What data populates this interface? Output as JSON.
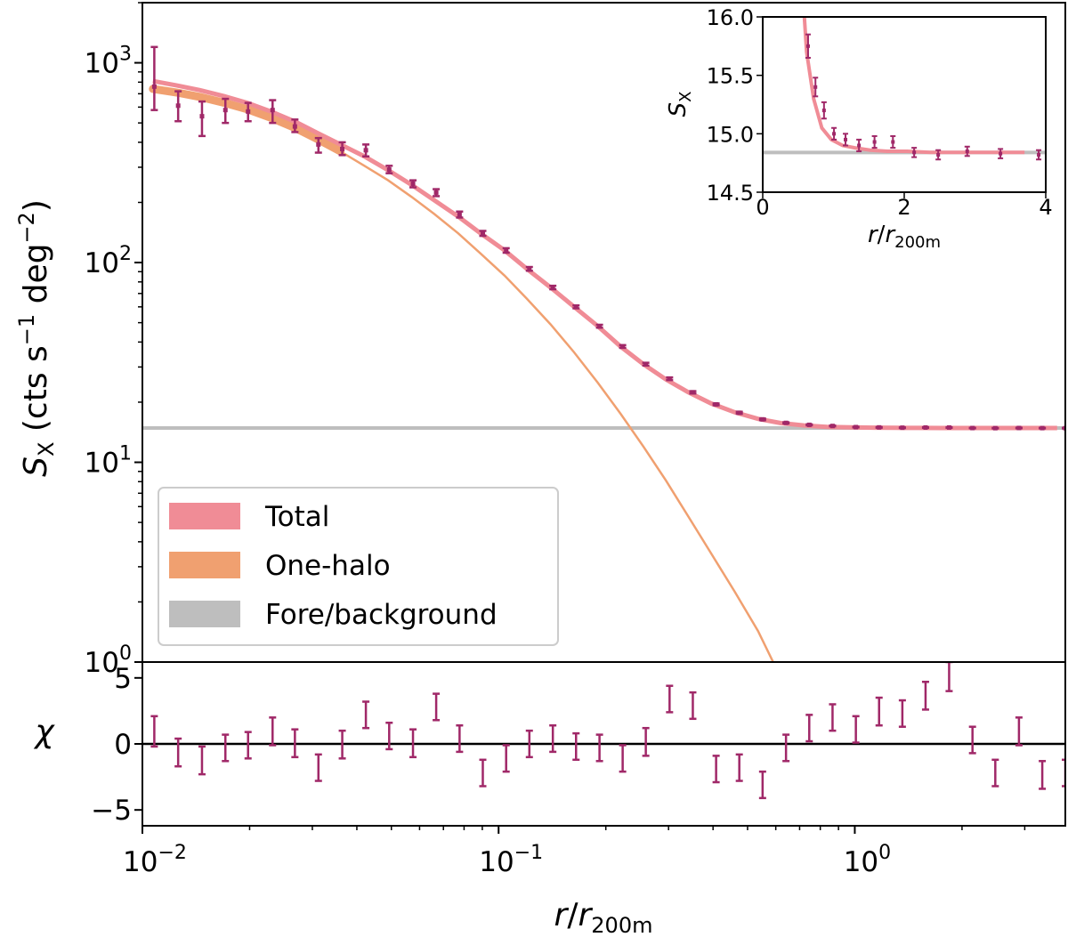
{
  "chart_data": {
    "type": "line",
    "main": {
      "xscale": "log",
      "yscale": "log",
      "xlim": [
        0.01,
        3.9
      ],
      "ylim": [
        1,
        2000
      ],
      "ylabel_symbol": "S",
      "ylabel_sub": "X",
      "ylabel_units_pre": " (cts s",
      "ylabel_exp1": "−1",
      "ylabel_units_mid": " deg",
      "ylabel_exp2": "−2",
      "ylabel_units_post": ")",
      "yticks": [
        {
          "value": 1,
          "base": "10",
          "exp": "0"
        },
        {
          "value": 10,
          "base": "10",
          "exp": "1"
        },
        {
          "value": 100,
          "base": "10",
          "exp": "2"
        },
        {
          "value": 1000,
          "base": "10",
          "exp": "3"
        }
      ],
      "legend": {
        "placement": "lower-left",
        "entries": [
          {
            "label": "Total",
            "color": "#F08C96"
          },
          {
            "label": "One-halo",
            "color": "#F0A070"
          },
          {
            "label": "Fore/background",
            "color": "#BEBEBE"
          }
        ]
      },
      "background_level": 14.84,
      "series_total": [
        [
          0.0107,
          810
        ],
        [
          0.0125,
          770
        ],
        [
          0.0145,
          730
        ],
        [
          0.017,
          680
        ],
        [
          0.0197,
          630
        ],
        [
          0.023,
          570
        ],
        [
          0.027,
          505
        ],
        [
          0.031,
          445
        ],
        [
          0.036,
          390
        ],
        [
          0.042,
          340
        ],
        [
          0.049,
          290
        ],
        [
          0.057,
          245
        ],
        [
          0.066,
          205
        ],
        [
          0.077,
          170
        ],
        [
          0.089,
          140
        ],
        [
          0.104,
          115
        ],
        [
          0.12,
          93
        ],
        [
          0.14,
          75
        ],
        [
          0.163,
          60
        ],
        [
          0.19,
          48
        ],
        [
          0.22,
          38
        ],
        [
          0.255,
          31
        ],
        [
          0.295,
          26
        ],
        [
          0.34,
          22.5
        ],
        [
          0.395,
          19.7
        ],
        [
          0.46,
          17.8
        ],
        [
          0.535,
          16.5
        ],
        [
          0.62,
          15.7
        ],
        [
          0.72,
          15.3
        ],
        [
          0.835,
          15.05
        ],
        [
          0.97,
          14.95
        ],
        [
          1.13,
          14.9
        ],
        [
          1.3,
          14.88
        ],
        [
          1.52,
          14.86
        ],
        [
          1.76,
          14.85
        ],
        [
          2.04,
          14.85
        ],
        [
          2.37,
          14.84
        ],
        [
          2.75,
          14.84
        ],
        [
          3.19,
          14.84
        ],
        [
          3.7,
          14.84
        ]
      ],
      "series_one_halo": [
        [
          0.0107,
          740
        ],
        [
          0.0125,
          710
        ],
        [
          0.0145,
          675
        ],
        [
          0.017,
          630
        ],
        [
          0.0197,
          585
        ],
        [
          0.023,
          530
        ],
        [
          0.027,
          470
        ],
        [
          0.031,
          415
        ],
        [
          0.036,
          360
        ],
        [
          0.042,
          305
        ],
        [
          0.049,
          258
        ],
        [
          0.057,
          213
        ],
        [
          0.066,
          175
        ],
        [
          0.077,
          140
        ],
        [
          0.089,
          111
        ],
        [
          0.104,
          86
        ],
        [
          0.12,
          66
        ],
        [
          0.14,
          49
        ],
        [
          0.163,
          35.5
        ],
        [
          0.19,
          25
        ],
        [
          0.22,
          17.5
        ],
        [
          0.255,
          12
        ],
        [
          0.295,
          8.1
        ],
        [
          0.34,
          5.4
        ],
        [
          0.395,
          3.5
        ],
        [
          0.46,
          2.25
        ],
        [
          0.535,
          1.43
        ],
        [
          0.59,
          1.0
        ]
      ],
      "data_points": [
        {
          "x": 0.0108,
          "y": 760,
          "lo": 580,
          "hi": 1200
        },
        {
          "x": 0.0126,
          "y": 610,
          "lo": 510,
          "hi": 720
        },
        {
          "x": 0.0147,
          "y": 540,
          "lo": 430,
          "hi": 640
        },
        {
          "x": 0.0171,
          "y": 580,
          "lo": 500,
          "hi": 660
        },
        {
          "x": 0.0198,
          "y": 570,
          "lo": 510,
          "hi": 630
        },
        {
          "x": 0.0232,
          "y": 580,
          "lo": 500,
          "hi": 650
        },
        {
          "x": 0.0268,
          "y": 480,
          "lo": 450,
          "hi": 520
        },
        {
          "x": 0.0312,
          "y": 390,
          "lo": 355,
          "hi": 420
        },
        {
          "x": 0.0364,
          "y": 370,
          "lo": 345,
          "hi": 400
        },
        {
          "x": 0.0424,
          "y": 365,
          "lo": 340,
          "hi": 390
        },
        {
          "x": 0.0493,
          "y": 292,
          "lo": 280,
          "hi": 305
        },
        {
          "x": 0.0575,
          "y": 248,
          "lo": 238,
          "hi": 258
        },
        {
          "x": 0.0668,
          "y": 224,
          "lo": 215,
          "hi": 233
        },
        {
          "x": 0.0777,
          "y": 174,
          "lo": 168,
          "hi": 180
        },
        {
          "x": 0.0903,
          "y": 140,
          "lo": 136,
          "hi": 144
        },
        {
          "x": 0.105,
          "y": 115,
          "lo": 112,
          "hi": 118
        },
        {
          "x": 0.122,
          "y": 93,
          "lo": 91,
          "hi": 95
        },
        {
          "x": 0.142,
          "y": 75,
          "lo": 73.5,
          "hi": 76.5
        },
        {
          "x": 0.165,
          "y": 60,
          "lo": 59,
          "hi": 61
        },
        {
          "x": 0.192,
          "y": 48,
          "lo": 47.2,
          "hi": 48.8
        },
        {
          "x": 0.223,
          "y": 38,
          "lo": 37.4,
          "hi": 38.6
        },
        {
          "x": 0.259,
          "y": 31,
          "lo": 30.5,
          "hi": 31.5
        },
        {
          "x": 0.302,
          "y": 26.2,
          "lo": 25.8,
          "hi": 26.6
        },
        {
          "x": 0.351,
          "y": 22.4,
          "lo": 22.1,
          "hi": 22.7
        },
        {
          "x": 0.408,
          "y": 19.5,
          "lo": 19.3,
          "hi": 19.7
        },
        {
          "x": 0.474,
          "y": 17.7,
          "lo": 17.5,
          "hi": 17.9
        },
        {
          "x": 0.551,
          "y": 16.4,
          "lo": 16.25,
          "hi": 16.55
        },
        {
          "x": 0.641,
          "y": 15.75,
          "lo": 15.65,
          "hi": 15.85
        },
        {
          "x": 0.745,
          "y": 15.4,
          "lo": 15.32,
          "hi": 15.48
        },
        {
          "x": 0.866,
          "y": 15.2,
          "lo": 15.13,
          "hi": 15.27
        },
        {
          "x": 1.007,
          "y": 15.0,
          "lo": 14.95,
          "hi": 15.05
        },
        {
          "x": 1.17,
          "y": 14.95,
          "lo": 14.9,
          "hi": 15.0
        },
        {
          "x": 1.36,
          "y": 14.9,
          "lo": 14.85,
          "hi": 14.95
        },
        {
          "x": 1.58,
          "y": 14.93,
          "lo": 14.88,
          "hi": 14.98
        },
        {
          "x": 1.84,
          "y": 14.93,
          "lo": 14.88,
          "hi": 14.98
        },
        {
          "x": 2.14,
          "y": 14.84,
          "lo": 14.8,
          "hi": 14.88
        },
        {
          "x": 2.48,
          "y": 14.82,
          "lo": 14.78,
          "hi": 14.86
        },
        {
          "x": 2.89,
          "y": 14.85,
          "lo": 14.81,
          "hi": 14.89
        },
        {
          "x": 3.36,
          "y": 14.83,
          "lo": 14.79,
          "hi": 14.87
        },
        {
          "x": 3.9,
          "y": 14.82,
          "lo": 14.78,
          "hi": 14.86
        }
      ]
    },
    "residual": {
      "ylabel": "χ",
      "ylim": [
        -6.2,
        6.2
      ],
      "yticks": [
        {
          "value": 5,
          "label": "5"
        },
        {
          "value": 0,
          "label": "0"
        },
        {
          "value": -5,
          "label": "−5"
        }
      ],
      "xticks": [
        {
          "value": 0.01,
          "base": "10",
          "exp": "−2"
        },
        {
          "value": 0.1,
          "base": "10",
          "exp": "−1"
        },
        {
          "value": 1,
          "base": "10",
          "exp": "0"
        }
      ],
      "xlabel_var": "r",
      "xlabel_sep": "/",
      "xlabel_sub_var": "r",
      "xlabel_sub": "200m",
      "points": [
        {
          "x": 0.0108,
          "lo": -0.2,
          "hi": 2.1
        },
        {
          "x": 0.0126,
          "lo": -1.7,
          "hi": 0.4
        },
        {
          "x": 0.0147,
          "lo": -2.3,
          "hi": -0.2
        },
        {
          "x": 0.0171,
          "lo": -1.3,
          "hi": 0.7
        },
        {
          "x": 0.0198,
          "lo": -1.1,
          "hi": 0.9
        },
        {
          "x": 0.0232,
          "lo": -0.1,
          "hi": 2.0
        },
        {
          "x": 0.0268,
          "lo": -1.0,
          "hi": 1.1
        },
        {
          "x": 0.0312,
          "lo": -2.8,
          "hi": -0.8
        },
        {
          "x": 0.0364,
          "lo": -1.1,
          "hi": 1.0
        },
        {
          "x": 0.0424,
          "lo": 1.2,
          "hi": 3.2
        },
        {
          "x": 0.0493,
          "lo": -0.4,
          "hi": 1.6
        },
        {
          "x": 0.0575,
          "lo": -1.0,
          "hi": 1.1
        },
        {
          "x": 0.0668,
          "lo": 1.8,
          "hi": 3.8
        },
        {
          "x": 0.0777,
          "lo": -0.6,
          "hi": 1.4
        },
        {
          "x": 0.0903,
          "lo": -3.2,
          "hi": -1.2
        },
        {
          "x": 0.105,
          "lo": -2.1,
          "hi": -0.1
        },
        {
          "x": 0.122,
          "lo": -1.0,
          "hi": 1.0
        },
        {
          "x": 0.142,
          "lo": -0.6,
          "hi": 1.4
        },
        {
          "x": 0.165,
          "lo": -1.2,
          "hi": 0.8
        },
        {
          "x": 0.192,
          "lo": -1.3,
          "hi": 0.7
        },
        {
          "x": 0.223,
          "lo": -2.1,
          "hi": -0.1
        },
        {
          "x": 0.259,
          "lo": -0.9,
          "hi": 1.2
        },
        {
          "x": 0.302,
          "lo": 2.4,
          "hi": 4.4
        },
        {
          "x": 0.351,
          "lo": 1.9,
          "hi": 3.9
        },
        {
          "x": 0.408,
          "lo": -2.9,
          "hi": -0.9
        },
        {
          "x": 0.474,
          "lo": -2.8,
          "hi": -0.8
        },
        {
          "x": 0.551,
          "lo": -4.1,
          "hi": -2.1
        },
        {
          "x": 0.641,
          "lo": -1.3,
          "hi": 0.7
        },
        {
          "x": 0.745,
          "lo": 0.2,
          "hi": 2.2
        },
        {
          "x": 0.866,
          "lo": 1.0,
          "hi": 3.0
        },
        {
          "x": 1.007,
          "lo": 0.1,
          "hi": 2.1
        },
        {
          "x": 1.17,
          "lo": 1.4,
          "hi": 3.5
        },
        {
          "x": 1.36,
          "lo": 1.3,
          "hi": 3.3
        },
        {
          "x": 1.58,
          "lo": 2.6,
          "hi": 4.7
        },
        {
          "x": 1.84,
          "lo": 4.0,
          "hi": 6.2
        },
        {
          "x": 2.14,
          "lo": -0.7,
          "hi": 1.3
        },
        {
          "x": 2.48,
          "lo": -3.2,
          "hi": -1.2
        },
        {
          "x": 2.89,
          "lo": -0.1,
          "hi": 2.0
        },
        {
          "x": 3.36,
          "lo": -3.4,
          "hi": -1.3
        },
        {
          "x": 3.9,
          "lo": -3.2,
          "hi": -1.2
        }
      ]
    },
    "inset": {
      "xscale": "linear",
      "yscale": "linear",
      "xlim": [
        0,
        4
      ],
      "ylim": [
        14.5,
        16.0
      ],
      "xticks": [
        {
          "value": 0,
          "label": "0"
        },
        {
          "value": 2,
          "label": "2"
        },
        {
          "value": 4,
          "label": "4"
        }
      ],
      "yticks": [
        {
          "value": 14.5,
          "label": "14.5"
        },
        {
          "value": 15.0,
          "label": "15.0"
        },
        {
          "value": 15.5,
          "label": "15.5"
        },
        {
          "value": 16.0,
          "label": "16.0"
        }
      ]
    },
    "colors": {
      "total": "#F08C96",
      "one_halo": "#F0A070",
      "background": "#BEBEBE",
      "data": "#A02868",
      "axes": "#000000"
    }
  }
}
